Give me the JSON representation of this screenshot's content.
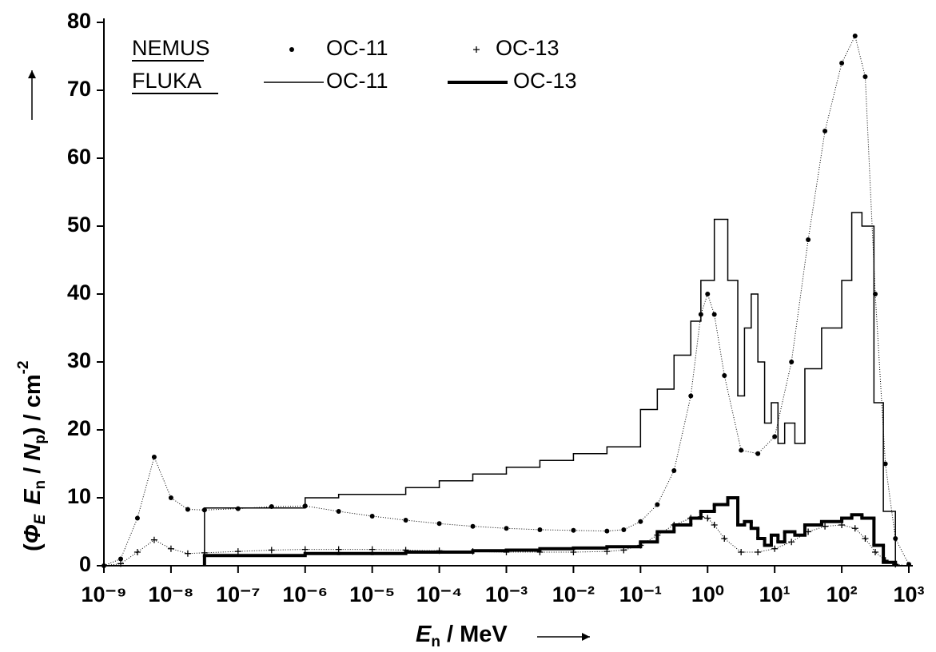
{
  "chart_data": {
    "type": "line",
    "x_label": [
      "E",
      "n",
      " / MeV"
    ],
    "y_label": [
      "(",
      "Φ",
      "E",
      "E",
      "n",
      " / ",
      "N",
      "p",
      ")  /  cm",
      "-2"
    ],
    "log_x": true,
    "xlim": [
      1e-09,
      1000
    ],
    "xticks": [
      {
        "value": 1e-09,
        "label": "10⁻⁹"
      },
      {
        "value": 1e-08,
        "label": "10⁻⁸"
      },
      {
        "value": 1e-07,
        "label": "10⁻⁷"
      },
      {
        "value": 1e-06,
        "label": "10⁻⁶"
      },
      {
        "value": 1e-05,
        "label": "10⁻⁵"
      },
      {
        "value": 0.0001,
        "label": "10⁻⁴"
      },
      {
        "value": 0.001,
        "label": "10⁻³"
      },
      {
        "value": 0.01,
        "label": "10⁻²"
      },
      {
        "value": 0.1,
        "label": "10⁻¹"
      },
      {
        "value": 1,
        "label": "10⁰"
      },
      {
        "value": 10,
        "label": "10¹"
      },
      {
        "value": 100,
        "label": "10²"
      },
      {
        "value": 1000,
        "label": "10³"
      }
    ],
    "ylim": [
      0,
      80
    ],
    "yticks": [
      0,
      10,
      20,
      30,
      40,
      50,
      60,
      70,
      80
    ],
    "legend_groups": [
      "NEMUS",
      "FLUKA"
    ],
    "series": [
      {
        "group": "NEMUS",
        "name": "OC-11",
        "marker": "dot",
        "color": "#000000",
        "x": [
          1e-09,
          1.78e-09,
          3.16e-09,
          5.62e-09,
          1e-08,
          1.78e-08,
          3.16e-08,
          1e-07,
          3.16e-07,
          1e-06,
          3.16e-06,
          1e-05,
          3.16e-05,
          0.0001,
          0.000316,
          0.001,
          0.00316,
          0.01,
          0.0316,
          0.0562,
          0.1,
          0.178,
          0.316,
          0.562,
          0.794,
          1,
          1.26,
          1.78,
          3.16,
          5.62,
          10,
          17.8,
          31.6,
          56.2,
          100,
          158,
          224,
          316,
          447,
          631,
          1000
        ],
        "values": [
          0,
          1,
          7,
          16,
          10,
          8.3,
          8.2,
          8.4,
          8.7,
          8.8,
          8.0,
          7.3,
          6.7,
          6.2,
          5.8,
          5.5,
          5.3,
          5.2,
          5.1,
          5.3,
          6.5,
          9,
          14,
          25,
          37,
          40,
          37,
          28,
          17,
          16.5,
          19,
          30,
          48,
          64,
          74,
          78,
          72,
          40,
          15,
          4,
          0.2
        ]
      },
      {
        "group": "NEMUS",
        "name": "OC-13",
        "marker": "plus",
        "color": "#000000",
        "x": [
          1e-09,
          1.78e-09,
          3.16e-09,
          5.62e-09,
          1e-08,
          1.78e-08,
          3.16e-08,
          1e-07,
          3.16e-07,
          1e-06,
          3.16e-06,
          1e-05,
          3.16e-05,
          0.0001,
          0.000316,
          0.001,
          0.00316,
          0.01,
          0.0316,
          0.0562,
          0.1,
          0.178,
          0.316,
          0.562,
          0.794,
          1,
          1.26,
          1.78,
          3.16,
          5.62,
          10,
          17.8,
          31.6,
          56.2,
          100,
          158,
          224,
          316,
          447,
          631,
          1000
        ],
        "values": [
          0,
          0.3,
          2,
          3.8,
          2.5,
          1.8,
          1.9,
          2.1,
          2.3,
          2.4,
          2.4,
          2.4,
          2.3,
          2.2,
          2.1,
          2.0,
          2.0,
          2.0,
          2.1,
          2.3,
          3,
          4.5,
          6,
          7,
          7.2,
          7,
          6,
          4,
          2,
          2,
          2.5,
          3.5,
          5,
          5.8,
          6,
          5.5,
          4,
          2,
          0.8,
          0.2,
          0
        ]
      },
      {
        "group": "FLUKA",
        "name": "OC-11",
        "marker": "step",
        "line_width": 1.5,
        "color": "#000000",
        "bins": [
          3.16e-08,
          1e-06,
          3.16e-06,
          1e-05,
          3.16e-05,
          0.0001,
          0.000316,
          0.001,
          0.00316,
          0.01,
          0.0316,
          0.1,
          0.178,
          0.316,
          0.562,
          0.794,
          1.26,
          2,
          2.82,
          3.55,
          4.47,
          5.62,
          7.08,
          8.91,
          11.2,
          14.1,
          20,
          28.2,
          50.1,
          100,
          141,
          200,
          302,
          417,
          631
        ],
        "values": [
          8.5,
          10,
          10.5,
          10.5,
          11.5,
          12.5,
          13.5,
          14.5,
          15.5,
          16.5,
          17.5,
          23,
          26,
          31,
          36,
          42,
          51,
          42,
          25,
          35,
          40,
          30,
          21,
          24,
          18,
          21,
          18,
          29,
          35,
          42,
          52,
          50,
          24,
          8
        ]
      },
      {
        "group": "FLUKA",
        "name": "OC-13",
        "marker": "step",
        "line_width": 4,
        "color": "#000000",
        "bins": [
          3.16e-08,
          1e-06,
          3.16e-06,
          1e-05,
          3.16e-05,
          0.0001,
          0.000316,
          0.001,
          0.00316,
          0.01,
          0.0316,
          0.1,
          0.178,
          0.316,
          0.562,
          0.794,
          1.26,
          2,
          2.82,
          3.55,
          4.47,
          5.62,
          7.08,
          8.91,
          11.2,
          14.1,
          20,
          28.2,
          50.1,
          100,
          141,
          200,
          302,
          417,
          631
        ],
        "values": [
          1.5,
          1.8,
          1.8,
          1.8,
          2,
          2,
          2.2,
          2.3,
          2.5,
          2.6,
          2.8,
          3.5,
          5,
          6,
          7,
          8,
          9,
          10,
          6,
          6.5,
          5.5,
          4,
          3,
          4.5,
          3.5,
          5,
          4.5,
          6,
          6.5,
          7,
          7.5,
          7,
          3,
          0.5
        ]
      }
    ]
  }
}
